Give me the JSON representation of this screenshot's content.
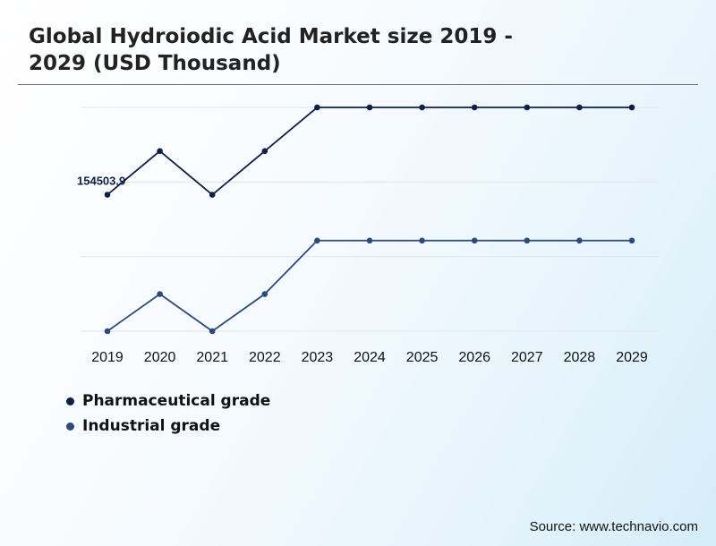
{
  "chart_data": {
    "type": "line",
    "title": "Global Hydroiodic Acid Market size 2019 - 2029 (USD Thousand)",
    "categories": [
      "2019",
      "2020",
      "2021",
      "2022",
      "2023",
      "2024",
      "2025",
      "2026",
      "2027",
      "2028",
      "2029"
    ],
    "series": [
      {
        "name": "Pharmaceutical grade",
        "color": "#0f1f45",
        "values": [
          154503.9,
          158500,
          154500,
          158500,
          162500,
          162500,
          162500,
          162500,
          162500,
          162500,
          162500
        ]
      },
      {
        "name": "Industrial grade",
        "color": "#2e4a7a",
        "values": [
          142000,
          145400,
          142000,
          145400,
          150300,
          150300,
          150300,
          150300,
          150300,
          150300,
          150300
        ]
      }
    ],
    "data_labels": [
      {
        "series": 0,
        "index": 0,
        "text": "154503.9"
      }
    ],
    "ylim": [
      142000,
      162500
    ],
    "xlabel": "",
    "ylabel": "",
    "grid": true,
    "legend_position": "bottom-left"
  },
  "source": "Source: www.technavio.com"
}
